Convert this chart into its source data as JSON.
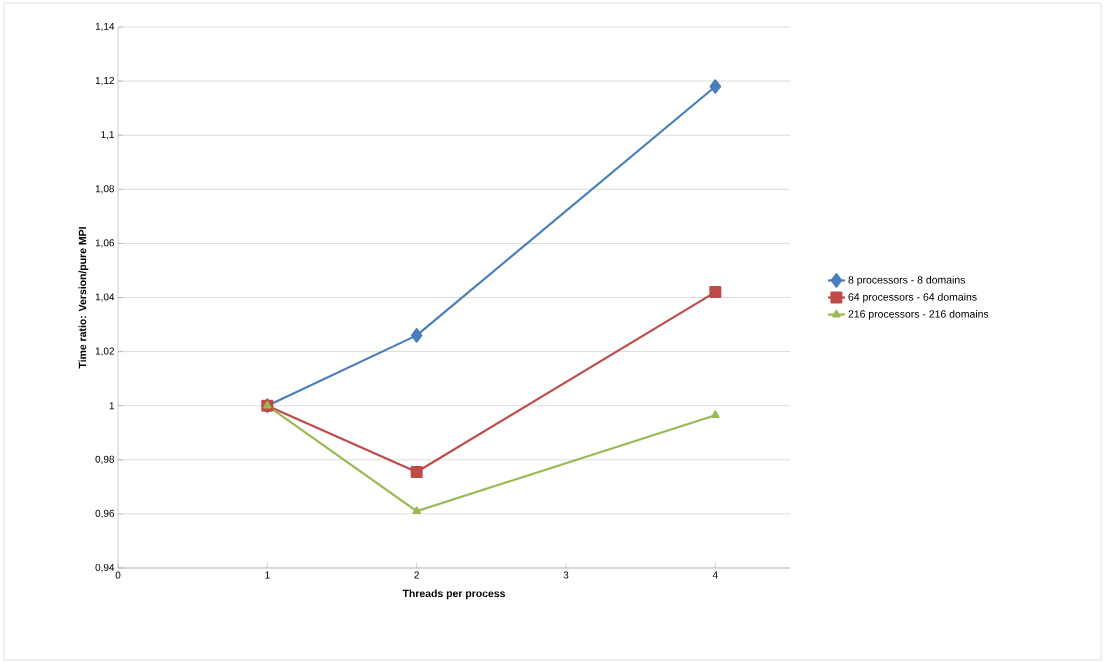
{
  "chart_data": {
    "type": "line",
    "xlabel": "Threads per process",
    "ylabel": "Time ratio: Version/pure MPI",
    "x": [
      1,
      2,
      4
    ],
    "series": [
      {
        "name": "8 processors - 8 domains",
        "color": "#4a7ebb",
        "marker": "diamond",
        "values": [
          1.0,
          1.026,
          1.118
        ]
      },
      {
        "name": "64 processors - 64 domains",
        "color": "#be4b48",
        "marker": "square",
        "values": [
          1.0,
          0.9755,
          1.042
        ]
      },
      {
        "name": "216 processors - 216 domains",
        "color": "#98b954",
        "marker": "triangle",
        "values": [
          1.0,
          0.961,
          0.9965
        ]
      }
    ],
    "xlim": [
      0,
      4.5
    ],
    "xticks": [
      0,
      1,
      2,
      3,
      4
    ],
    "ylim": [
      0.94,
      1.14
    ],
    "yticks": [
      {
        "value": 0.94,
        "label": "0,94"
      },
      {
        "value": 0.96,
        "label": "0,96"
      },
      {
        "value": 0.98,
        "label": "0,98"
      },
      {
        "value": 1,
        "label": "1"
      },
      {
        "value": 1.02,
        "label": "1,02"
      },
      {
        "value": 1.04,
        "label": "1,04"
      },
      {
        "value": 1.06,
        "label": "1,06"
      },
      {
        "value": 1.08,
        "label": "1,08"
      },
      {
        "value": 1.1,
        "label": "1,1"
      },
      {
        "value": 1.12,
        "label": "1,12"
      },
      {
        "value": 1.14,
        "label": "1,14"
      }
    ],
    "grid": "y",
    "legend": "right",
    "line_style": "solid"
  }
}
